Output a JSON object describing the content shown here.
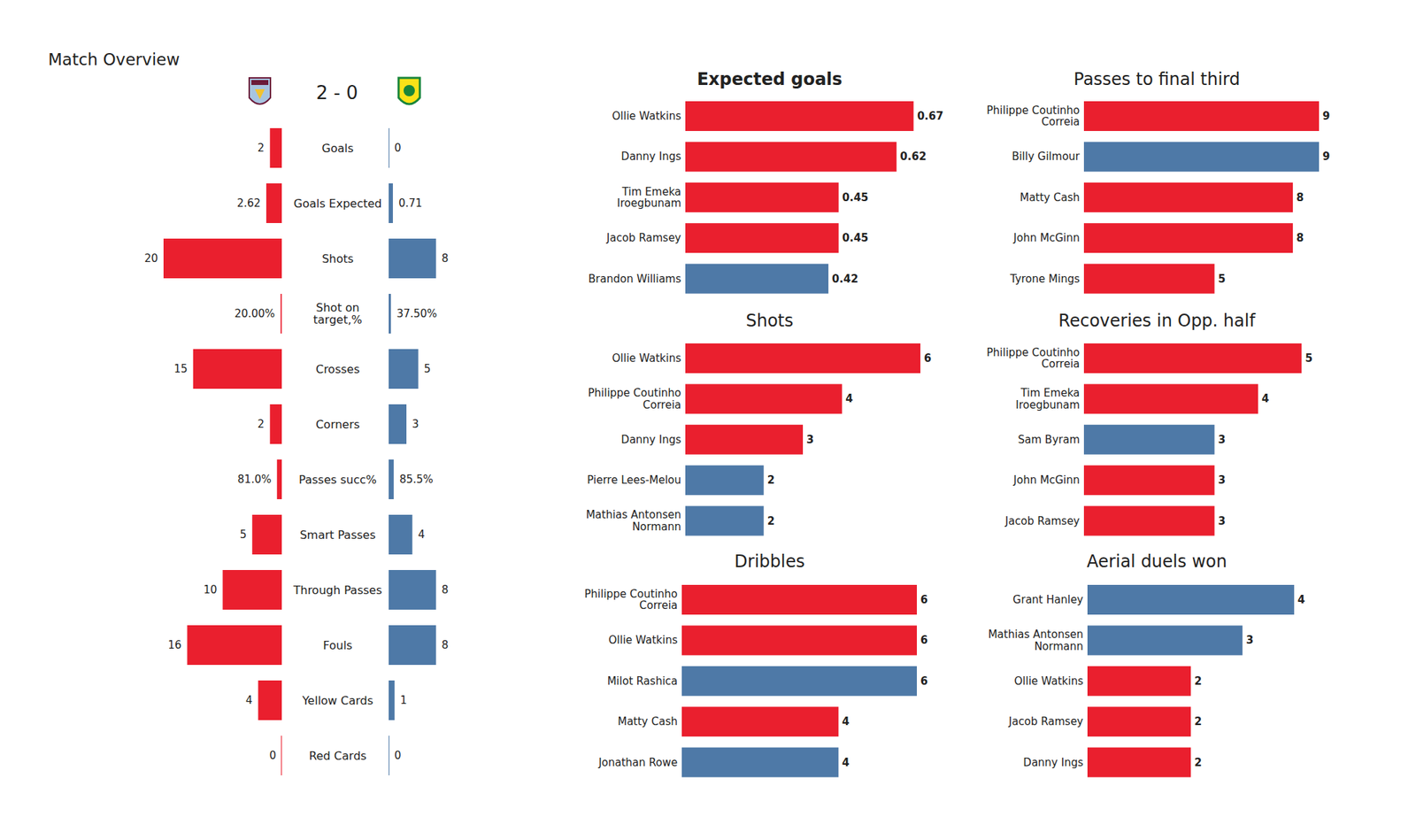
{
  "chart_data": [
    {
      "type": "bar",
      "orientation": "horizontal",
      "title": "Match Overview",
      "subtitle": "2 - 0",
      "categories": [
        "Goals",
        "Goals Expected",
        "Shots",
        "Shot on target,%",
        "Crosses",
        "Corners",
        "Passes succ%",
        "Smart Passes",
        "Through Passes",
        "Fouls",
        "Yellow Cards",
        "Red Cards"
      ],
      "series": [
        {
          "color": "#ea1f2e",
          "values": [
            2,
            2.62,
            20,
            0.2,
            15,
            2,
            0.81,
            5,
            10,
            16,
            4,
            0
          ],
          "value_labels": [
            "2",
            "2.62",
            "20",
            "20.00%",
            "15",
            "2",
            "81.0%",
            "5",
            "10",
            "16",
            "4",
            "0"
          ]
        },
        {
          "color": "#4e79a7",
          "values": [
            0,
            0.71,
            8,
            0.375,
            5,
            3,
            0.855,
            4,
            8,
            8,
            1,
            0
          ],
          "value_labels": [
            "0",
            "0.71",
            "8",
            "37.50%",
            "5",
            "3",
            "85.5%",
            "4",
            "8",
            "8",
            "1",
            "0"
          ]
        }
      ],
      "xlim": [
        0,
        20
      ],
      "data_labels": true,
      "tick_labels": false
    },
    {
      "type": "bar",
      "orientation": "horizontal",
      "title": "Expected goals",
      "categories": [
        "Ollie Watkins",
        "Danny Ings",
        "Tim Emeka Iroegbunam",
        "Jacob Ramsey",
        "Brandon Williams"
      ],
      "values": [
        0.67,
        0.62,
        0.45,
        0.45,
        0.42
      ],
      "colors": [
        "#ea1f2e",
        "#ea1f2e",
        "#ea1f2e",
        "#ea1f2e",
        "#4e79a7"
      ],
      "xlim": [
        0,
        0.69
      ],
      "data_labels": true,
      "tick_labels": false
    },
    {
      "type": "bar",
      "orientation": "horizontal",
      "title": "Passes to final third",
      "categories": [
        "Philippe Coutinho Correia",
        "Billy Gilmour",
        "Matty Cash",
        "John McGinn",
        "Tyrone Mings"
      ],
      "values": [
        9,
        9,
        8,
        8,
        5
      ],
      "colors": [
        "#ea1f2e",
        "#4e79a7",
        "#ea1f2e",
        "#ea1f2e",
        "#ea1f2e"
      ],
      "xlim": [
        0,
        9
      ],
      "data_labels": true,
      "tick_labels": false
    },
    {
      "type": "bar",
      "orientation": "horizontal",
      "title": "Shots",
      "categories": [
        "Ollie Watkins",
        "Philippe Coutinho Correia",
        "Danny Ings",
        "Pierre Lees-Melou",
        "Mathias  Antonsen Normann"
      ],
      "values": [
        6,
        4,
        3,
        2,
        2
      ],
      "colors": [
        "#ea1f2e",
        "#ea1f2e",
        "#ea1f2e",
        "#4e79a7",
        "#4e79a7"
      ],
      "xlim": [
        0,
        6
      ],
      "data_labels": true,
      "tick_labels": false
    },
    {
      "type": "bar",
      "orientation": "horizontal",
      "title": "Recoveries in Opp. half",
      "categories": [
        "Philippe Coutinho Correia",
        "Tim Emeka Iroegbunam",
        "Sam Byram",
        "John McGinn",
        "Jacob Ramsey"
      ],
      "values": [
        5,
        4,
        3,
        3,
        3
      ],
      "colors": [
        "#ea1f2e",
        "#ea1f2e",
        "#4e79a7",
        "#ea1f2e",
        "#ea1f2e"
      ],
      "xlim": [
        0,
        5.4
      ],
      "data_labels": true,
      "tick_labels": false
    },
    {
      "type": "bar",
      "orientation": "horizontal",
      "title": "Dribbles",
      "categories": [
        "Philippe Coutinho Correia",
        "Ollie Watkins",
        "Milot Rashica",
        "Matty Cash",
        "Jonathan Rowe"
      ],
      "values": [
        6,
        6,
        6,
        4,
        4
      ],
      "colors": [
        "#ea1f2e",
        "#ea1f2e",
        "#4e79a7",
        "#ea1f2e",
        "#4e79a7"
      ],
      "xlim": [
        0,
        6
      ],
      "data_labels": true,
      "tick_labels": false
    },
    {
      "type": "bar",
      "orientation": "horizontal",
      "title": "Aerial duels won",
      "categories": [
        "Grant Hanley",
        "Mathias  Antonsen Normann",
        "Ollie Watkins",
        "Jacob Ramsey",
        "Danny Ings"
      ],
      "values": [
        4,
        3,
        2,
        2,
        2
      ],
      "colors": [
        "#4e79a7",
        "#4e79a7",
        "#ea1f2e",
        "#ea1f2e",
        "#ea1f2e"
      ],
      "xlim": [
        0,
        4.55
      ],
      "data_labels": true,
      "tick_labels": false
    }
  ]
}
